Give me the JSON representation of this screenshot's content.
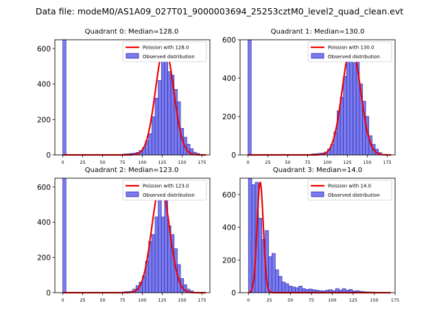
{
  "figure_title": "Data file: modeM0/AS1A09_027T01_9000003694_25253cztM0_level2_quad_clean.evt",
  "colors": {
    "bar_fill": "#7b7bf0",
    "bar_edge": "#2a2aa8",
    "poisson": "#ee0000",
    "axis": "#000000"
  },
  "chart_data": [
    {
      "type": "bar",
      "title": "Quadrant 0: Median=128.0",
      "median": 128.0,
      "legend": {
        "line": "Poission with 128.0",
        "bars": "Observed distribution",
        "placement": "top-right"
      },
      "bin_width": 4,
      "xlim": [
        -10,
        185
      ],
      "ylim": [
        0,
        650
      ],
      "xticks": [
        0,
        25,
        50,
        75,
        100,
        125,
        150,
        175
      ],
      "yticks": [
        0,
        200,
        400,
        600
      ],
      "observed": [
        {
          "x": 0,
          "y": 650
        },
        {
          "x": 76,
          "y": 5
        },
        {
          "x": 80,
          "y": 6
        },
        {
          "x": 84,
          "y": 8
        },
        {
          "x": 88,
          "y": 10
        },
        {
          "x": 92,
          "y": 14
        },
        {
          "x": 96,
          "y": 25
        },
        {
          "x": 100,
          "y": 40
        },
        {
          "x": 104,
          "y": 80
        },
        {
          "x": 108,
          "y": 120
        },
        {
          "x": 112,
          "y": 215
        },
        {
          "x": 116,
          "y": 320
        },
        {
          "x": 120,
          "y": 420
        },
        {
          "x": 124,
          "y": 555
        },
        {
          "x": 128,
          "y": 610
        },
        {
          "x": 132,
          "y": 470
        },
        {
          "x": 136,
          "y": 450
        },
        {
          "x": 140,
          "y": 370
        },
        {
          "x": 144,
          "y": 300
        },
        {
          "x": 148,
          "y": 150
        },
        {
          "x": 152,
          "y": 100
        },
        {
          "x": 156,
          "y": 60
        },
        {
          "x": 160,
          "y": 35
        },
        {
          "x": 164,
          "y": 15
        },
        {
          "x": 168,
          "y": 8
        }
      ],
      "poisson_peak": 612
    },
    {
      "type": "bar",
      "title": "Quadrant 1: Median=130.0",
      "median": 130.0,
      "legend": {
        "line": "Poission with 130.0",
        "bars": "Observed distribution",
        "placement": "top-right"
      },
      "bin_width": 4,
      "xlim": [
        -10,
        185
      ],
      "ylim": [
        0,
        600
      ],
      "xticks": [
        0,
        25,
        50,
        75,
        100,
        125,
        150,
        175
      ],
      "yticks": [
        0,
        200,
        400,
        600
      ],
      "observed": [
        {
          "x": 0,
          "y": 600
        },
        {
          "x": 80,
          "y": 5
        },
        {
          "x": 84,
          "y": 6
        },
        {
          "x": 88,
          "y": 8
        },
        {
          "x": 92,
          "y": 10
        },
        {
          "x": 96,
          "y": 15
        },
        {
          "x": 100,
          "y": 30
        },
        {
          "x": 104,
          "y": 55
        },
        {
          "x": 108,
          "y": 120
        },
        {
          "x": 112,
          "y": 230
        },
        {
          "x": 116,
          "y": 300
        },
        {
          "x": 120,
          "y": 410
        },
        {
          "x": 124,
          "y": 500
        },
        {
          "x": 128,
          "y": 570
        },
        {
          "x": 132,
          "y": 480
        },
        {
          "x": 136,
          "y": 510
        },
        {
          "x": 140,
          "y": 370
        },
        {
          "x": 144,
          "y": 280
        },
        {
          "x": 148,
          "y": 200
        },
        {
          "x": 152,
          "y": 100
        },
        {
          "x": 156,
          "y": 55
        },
        {
          "x": 160,
          "y": 30
        },
        {
          "x": 164,
          "y": 12
        }
      ],
      "poisson_peak": 568
    },
    {
      "type": "bar",
      "title": "Quadrant 2: Median=123.0",
      "median": 123.0,
      "legend": {
        "line": "Poission with 123.0",
        "bars": "Observed distribution",
        "placement": "top-right"
      },
      "bin_width": 4,
      "xlim": [
        -10,
        185
      ],
      "ylim": [
        0,
        650
      ],
      "xticks": [
        0,
        25,
        50,
        75,
        100,
        125,
        150,
        175
      ],
      "yticks": [
        0,
        200,
        400,
        600
      ],
      "observed": [
        {
          "x": 0,
          "y": 650
        },
        {
          "x": 76,
          "y": 5
        },
        {
          "x": 80,
          "y": 6
        },
        {
          "x": 84,
          "y": 8
        },
        {
          "x": 88,
          "y": 20
        },
        {
          "x": 92,
          "y": 40
        },
        {
          "x": 96,
          "y": 60
        },
        {
          "x": 100,
          "y": 95
        },
        {
          "x": 104,
          "y": 180
        },
        {
          "x": 108,
          "y": 290
        },
        {
          "x": 112,
          "y": 330
        },
        {
          "x": 116,
          "y": 430
        },
        {
          "x": 120,
          "y": 600
        },
        {
          "x": 124,
          "y": 430
        },
        {
          "x": 128,
          "y": 595
        },
        {
          "x": 132,
          "y": 380
        },
        {
          "x": 136,
          "y": 330
        },
        {
          "x": 140,
          "y": 250
        },
        {
          "x": 144,
          "y": 160
        },
        {
          "x": 148,
          "y": 80
        },
        {
          "x": 152,
          "y": 45
        },
        {
          "x": 156,
          "y": 20
        },
        {
          "x": 160,
          "y": 10
        }
      ],
      "poisson_peak": 612
    },
    {
      "type": "bar",
      "title": "Quadrant 3: Median=14.0",
      "median": 14.0,
      "legend": {
        "line": "Poission with 14.0",
        "bars": "Observed distribution",
        "placement": "top-right"
      },
      "bin_width": 4,
      "xlim": [
        -10,
        175
      ],
      "ylim": [
        0,
        700
      ],
      "xticks": [
        0,
        25,
        50,
        75,
        100,
        125,
        150,
        175
      ],
      "yticks": [
        0,
        200,
        400,
        600
      ],
      "observed": [
        {
          "x": 0,
          "y": 700
        },
        {
          "x": 4,
          "y": 660
        },
        {
          "x": 8,
          "y": 675
        },
        {
          "x": 12,
          "y": 455
        },
        {
          "x": 16,
          "y": 325
        },
        {
          "x": 20,
          "y": 380
        },
        {
          "x": 24,
          "y": 220
        },
        {
          "x": 28,
          "y": 240
        },
        {
          "x": 32,
          "y": 140
        },
        {
          "x": 36,
          "y": 100
        },
        {
          "x": 40,
          "y": 65
        },
        {
          "x": 44,
          "y": 55
        },
        {
          "x": 48,
          "y": 40
        },
        {
          "x": 52,
          "y": 35
        },
        {
          "x": 56,
          "y": 30
        },
        {
          "x": 60,
          "y": 40
        },
        {
          "x": 64,
          "y": 25
        },
        {
          "x": 68,
          "y": 20
        },
        {
          "x": 72,
          "y": 22
        },
        {
          "x": 76,
          "y": 18
        },
        {
          "x": 80,
          "y": 15
        },
        {
          "x": 84,
          "y": 12
        },
        {
          "x": 88,
          "y": 10
        },
        {
          "x": 92,
          "y": 15
        },
        {
          "x": 96,
          "y": 18
        },
        {
          "x": 100,
          "y": 12
        },
        {
          "x": 104,
          "y": 25
        },
        {
          "x": 108,
          "y": 15
        },
        {
          "x": 112,
          "y": 25
        },
        {
          "x": 116,
          "y": 15
        },
        {
          "x": 120,
          "y": 20
        },
        {
          "x": 124,
          "y": 10
        },
        {
          "x": 128,
          "y": 12
        },
        {
          "x": 132,
          "y": 8
        },
        {
          "x": 136,
          "y": 6
        },
        {
          "x": 140,
          "y": 5
        },
        {
          "x": 144,
          "y": 4
        },
        {
          "x": 148,
          "y": 3
        }
      ],
      "poisson_peak": 675
    }
  ]
}
